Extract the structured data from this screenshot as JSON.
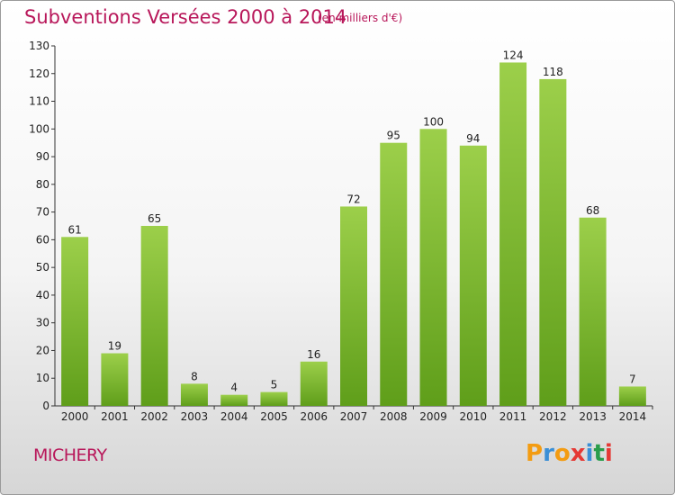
{
  "header": {
    "title": "Subventions Versées 2000 à 2014",
    "unit_note": "(en milliers d'€)"
  },
  "footer": {
    "commune": "MICHERY",
    "logo_text": "Proxiti",
    "logo_colors": [
      "#f39c12",
      "#3a8fd6",
      "#f39c12",
      "#e53935",
      "#3a8fd6",
      "#2a9d4b",
      "#e53935"
    ]
  },
  "colors": {
    "bar_top": "#9ccf4a",
    "bar_bottom": "#5f9e1a",
    "title": "#b8175a",
    "axis": "#333333"
  },
  "chart_data": {
    "type": "bar",
    "title": "Subventions Versées 2000 à 2014",
    "subtitle": "(en milliers d'€)",
    "categories": [
      "2000",
      "2001",
      "2002",
      "2003",
      "2004",
      "2005",
      "2006",
      "2007",
      "2008",
      "2009",
      "2010",
      "2011",
      "2012",
      "2013",
      "2014"
    ],
    "values": [
      61,
      19,
      65,
      8,
      4,
      5,
      16,
      72,
      95,
      100,
      94,
      124,
      118,
      68,
      7
    ],
    "ylim": [
      0,
      130
    ],
    "yticks": [
      0,
      10,
      20,
      30,
      40,
      50,
      60,
      70,
      80,
      90,
      100,
      110,
      120,
      130
    ],
    "grid": false,
    "data_labels": true
  }
}
